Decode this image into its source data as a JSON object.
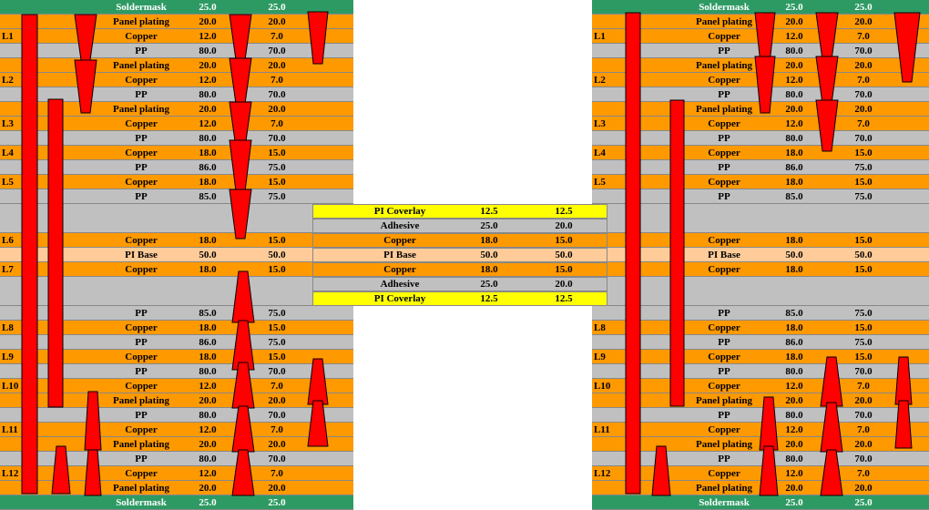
{
  "colors": {
    "soldermask": "#2e9a63",
    "plating": "#ff9900",
    "copper": "#ff9900",
    "pp": "#c0c0c0",
    "pi_base": "#ffcc99",
    "coverlay": "#ffff00",
    "adhesive": "#c0c0c0",
    "via": "#ff0000"
  },
  "stackup": {
    "top": [
      {
        "label": "",
        "material": "Soldermask",
        "v1": "25.0",
        "v2": "25.0",
        "kind": "soldermask"
      },
      {
        "label": "",
        "material": "Panel plating",
        "v1": "20.0",
        "v2": "20.0",
        "kind": "plating"
      },
      {
        "label": "L1",
        "material": "Copper",
        "v1": "12.0",
        "v2": "7.0",
        "kind": "copper"
      },
      {
        "label": "",
        "material": "PP",
        "v1": "80.0",
        "v2": "70.0",
        "kind": "pp"
      },
      {
        "label": "",
        "material": "Panel plating",
        "v1": "20.0",
        "v2": "20.0",
        "kind": "plating"
      },
      {
        "label": "L2",
        "material": "Copper",
        "v1": "12.0",
        "v2": "7.0",
        "kind": "copper"
      },
      {
        "label": "",
        "material": "PP",
        "v1": "80.0",
        "v2": "70.0",
        "kind": "pp"
      },
      {
        "label": "",
        "material": "Panel plating",
        "v1": "20.0",
        "v2": "20.0",
        "kind": "plating"
      },
      {
        "label": "L3",
        "material": "Copper",
        "v1": "12.0",
        "v2": "7.0",
        "kind": "copper"
      },
      {
        "label": "",
        "material": "PP",
        "v1": "80.0",
        "v2": "70.0",
        "kind": "pp"
      },
      {
        "label": "L4",
        "material": "Copper",
        "v1": "18.0",
        "v2": "15.0",
        "kind": "copper"
      },
      {
        "label": "",
        "material": "PP",
        "v1": "86.0",
        "v2": "75.0",
        "kind": "pp"
      },
      {
        "label": "L5",
        "material": "Copper",
        "v1": "18.0",
        "v2": "15.0",
        "kind": "copper"
      },
      {
        "label": "",
        "material": "PP",
        "v1": "85.0",
        "v2": "75.0",
        "kind": "pp"
      }
    ],
    "core": [
      {
        "label": "L6",
        "material": "Copper",
        "v1": "18.0",
        "v2": "15.0",
        "kind": "copper"
      },
      {
        "label": "",
        "material": "PI Base",
        "v1": "50.0",
        "v2": "50.0",
        "kind": "pi_base"
      },
      {
        "label": "L7",
        "material": "Copper",
        "v1": "18.0",
        "v2": "15.0",
        "kind": "copper"
      }
    ],
    "bottom": [
      {
        "label": "",
        "material": "PP",
        "v1": "85.0",
        "v2": "75.0",
        "kind": "pp"
      },
      {
        "label": "L8",
        "material": "Copper",
        "v1": "18.0",
        "v2": "15.0",
        "kind": "copper"
      },
      {
        "label": "",
        "material": "PP",
        "v1": "86.0",
        "v2": "75.0",
        "kind": "pp"
      },
      {
        "label": "L9",
        "material": "Copper",
        "v1": "18.0",
        "v2": "15.0",
        "kind": "copper"
      },
      {
        "label": "",
        "material": "PP",
        "v1": "80.0",
        "v2": "70.0",
        "kind": "pp"
      },
      {
        "label": "L10",
        "material": "Copper",
        "v1": "12.0",
        "v2": "7.0",
        "kind": "copper"
      },
      {
        "label": "",
        "material": "Panel plating",
        "v1": "20.0",
        "v2": "20.0",
        "kind": "plating"
      },
      {
        "label": "",
        "material": "PP",
        "v1": "80.0",
        "v2": "70.0",
        "kind": "pp"
      },
      {
        "label": "L11",
        "material": "Copper",
        "v1": "12.0",
        "v2": "7.0",
        "kind": "copper"
      },
      {
        "label": "",
        "material": "Panel plating",
        "v1": "20.0",
        "v2": "20.0",
        "kind": "plating"
      },
      {
        "label": "",
        "material": "PP",
        "v1": "80.0",
        "v2": "70.0",
        "kind": "pp"
      },
      {
        "label": "L12",
        "material": "Copper",
        "v1": "12.0",
        "v2": "7.0",
        "kind": "copper"
      },
      {
        "label": "",
        "material": "Panel plating",
        "v1": "20.0",
        "v2": "20.0",
        "kind": "plating"
      },
      {
        "label": "",
        "material": "Soldermask",
        "v1": "25.0",
        "v2": "25.0",
        "kind": "soldermask"
      }
    ]
  },
  "flex": [
    {
      "material": "PI Coverlay",
      "v1": "12.5",
      "v2": "12.5",
      "kind": "coverlay"
    },
    {
      "material": "Adhesive",
      "v1": "25.0",
      "v2": "20.0",
      "kind": "adhesive"
    },
    {
      "material": "Copper",
      "v1": "18.0",
      "v2": "15.0",
      "kind": "copper"
    },
    {
      "material": "PI Base",
      "v1": "50.0",
      "v2": "50.0",
      "kind": "pi_base"
    },
    {
      "material": "Copper",
      "v1": "18.0",
      "v2": "15.0",
      "kind": "copper"
    },
    {
      "material": "Adhesive",
      "v1": "25.0",
      "v2": "20.0",
      "kind": "adhesive"
    },
    {
      "material": "PI Coverlay",
      "v1": "12.5",
      "v2": "12.5",
      "kind": "coverlay"
    }
  ]
}
